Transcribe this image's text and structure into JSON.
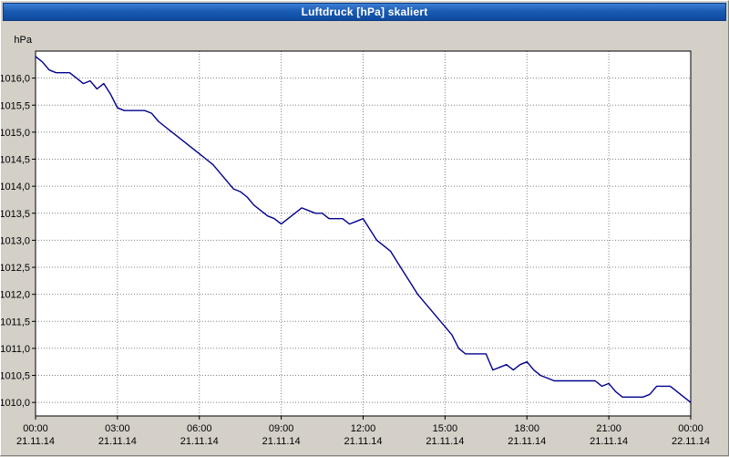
{
  "window": {
    "title": "Luftdruck [hPa] skaliert"
  },
  "chart_data": {
    "type": "line",
    "title": "Luftdruck [hPa] skaliert",
    "ylabel": "hPa",
    "line_color": "#00008c",
    "plot_background": "#ffffff",
    "grid_color": "#808080",
    "grid_style": "dotted",
    "legend": "none",
    "xlim_hours": [
      0,
      24
    ],
    "ylim": [
      1009.75,
      1016.5
    ],
    "y_ticks": [
      {
        "label": "1016,0",
        "value": 1016.0
      },
      {
        "label": "1015,5",
        "value": 1015.5
      },
      {
        "label": "1015,0",
        "value": 1015.0
      },
      {
        "label": "1014,5",
        "value": 1014.5
      },
      {
        "label": "1014,0",
        "value": 1014.0
      },
      {
        "label": "1013,5",
        "value": 1013.5
      },
      {
        "label": "1013,0",
        "value": 1013.0
      },
      {
        "label": "1012,5",
        "value": 1012.5
      },
      {
        "label": "1012,0",
        "value": 1012.0
      },
      {
        "label": "1011,5",
        "value": 1011.5
      },
      {
        "label": "1011,0",
        "value": 1011.0
      },
      {
        "label": "1010,5",
        "value": 1010.5
      },
      {
        "label": "1010,0",
        "value": 1010.0
      }
    ],
    "x_ticks": [
      {
        "hour": 0,
        "time": "00:00",
        "date": "21.11.14"
      },
      {
        "hour": 3,
        "time": "03:00",
        "date": "21.11.14"
      },
      {
        "hour": 6,
        "time": "06:00",
        "date": "21.11.14"
      },
      {
        "hour": 9,
        "time": "09:00",
        "date": "21.11.14"
      },
      {
        "hour": 12,
        "time": "12:00",
        "date": "21.11.14"
      },
      {
        "hour": 15,
        "time": "15:00",
        "date": "21.11.14"
      },
      {
        "hour": 18,
        "time": "18:00",
        "date": "21.11.14"
      },
      {
        "hour": 21,
        "time": "21:00",
        "date": "21.11.14"
      },
      {
        "hour": 24,
        "time": "00:00",
        "date": "22.11.14"
      }
    ],
    "series": [
      {
        "name": "Luftdruck",
        "points": [
          [
            0,
            1016.4
          ],
          [
            0.25,
            1016.3
          ],
          [
            0.5,
            1016.15
          ],
          [
            0.75,
            1016.1
          ],
          [
            1,
            1016.1
          ],
          [
            1.25,
            1016.1
          ],
          [
            1.5,
            1016.0
          ],
          [
            1.75,
            1015.9
          ],
          [
            2,
            1015.95
          ],
          [
            2.25,
            1015.8
          ],
          [
            2.5,
            1015.9
          ],
          [
            2.75,
            1015.7
          ],
          [
            3,
            1015.45
          ],
          [
            3.25,
            1015.4
          ],
          [
            3.5,
            1015.4
          ],
          [
            3.75,
            1015.4
          ],
          [
            4,
            1015.4
          ],
          [
            4.25,
            1015.35
          ],
          [
            4.5,
            1015.2
          ],
          [
            4.75,
            1015.1
          ],
          [
            5,
            1015.0
          ],
          [
            5.25,
            1014.9
          ],
          [
            5.5,
            1014.8
          ],
          [
            5.75,
            1014.7
          ],
          [
            6,
            1014.6
          ],
          [
            6.25,
            1014.5
          ],
          [
            6.5,
            1014.4
          ],
          [
            6.75,
            1014.25
          ],
          [
            7,
            1014.1
          ],
          [
            7.25,
            1013.95
          ],
          [
            7.5,
            1013.9
          ],
          [
            7.75,
            1013.8
          ],
          [
            8,
            1013.65
          ],
          [
            8.25,
            1013.55
          ],
          [
            8.5,
            1013.45
          ],
          [
            8.75,
            1013.4
          ],
          [
            9,
            1013.3
          ],
          [
            9.25,
            1013.4
          ],
          [
            9.5,
            1013.5
          ],
          [
            9.75,
            1013.6
          ],
          [
            10,
            1013.55
          ],
          [
            10.25,
            1013.5
          ],
          [
            10.5,
            1013.5
          ],
          [
            10.75,
            1013.4
          ],
          [
            11,
            1013.4
          ],
          [
            11.25,
            1013.4
          ],
          [
            11.5,
            1013.3
          ],
          [
            11.75,
            1013.35
          ],
          [
            12,
            1013.4
          ],
          [
            12.25,
            1013.2
          ],
          [
            12.5,
            1013.0
          ],
          [
            12.75,
            1012.9
          ],
          [
            13,
            1012.8
          ],
          [
            13.25,
            1012.6
          ],
          [
            13.5,
            1012.4
          ],
          [
            13.75,
            1012.2
          ],
          [
            14,
            1012.0
          ],
          [
            14.25,
            1011.85
          ],
          [
            14.5,
            1011.7
          ],
          [
            14.75,
            1011.55
          ],
          [
            15,
            1011.4
          ],
          [
            15.25,
            1011.25
          ],
          [
            15.5,
            1011.0
          ],
          [
            15.75,
            1010.9
          ],
          [
            16,
            1010.9
          ],
          [
            16.25,
            1010.9
          ],
          [
            16.5,
            1010.9
          ],
          [
            16.75,
            1010.6
          ],
          [
            17,
            1010.65
          ],
          [
            17.25,
            1010.7
          ],
          [
            17.5,
            1010.6
          ],
          [
            17.75,
            1010.7
          ],
          [
            18,
            1010.75
          ],
          [
            18.25,
            1010.6
          ],
          [
            18.5,
            1010.5
          ],
          [
            18.75,
            1010.45
          ],
          [
            19,
            1010.4
          ],
          [
            19.25,
            1010.4
          ],
          [
            19.5,
            1010.4
          ],
          [
            19.75,
            1010.4
          ],
          [
            20,
            1010.4
          ],
          [
            20.25,
            1010.4
          ],
          [
            20.5,
            1010.4
          ],
          [
            20.75,
            1010.3
          ],
          [
            21,
            1010.35
          ],
          [
            21.25,
            1010.2
          ],
          [
            21.5,
            1010.1
          ],
          [
            21.75,
            1010.1
          ],
          [
            22,
            1010.1
          ],
          [
            22.25,
            1010.1
          ],
          [
            22.5,
            1010.15
          ],
          [
            22.75,
            1010.3
          ],
          [
            23,
            1010.3
          ],
          [
            23.25,
            1010.3
          ],
          [
            23.5,
            1010.2
          ],
          [
            23.75,
            1010.1
          ],
          [
            24,
            1010.0
          ]
        ]
      }
    ]
  }
}
